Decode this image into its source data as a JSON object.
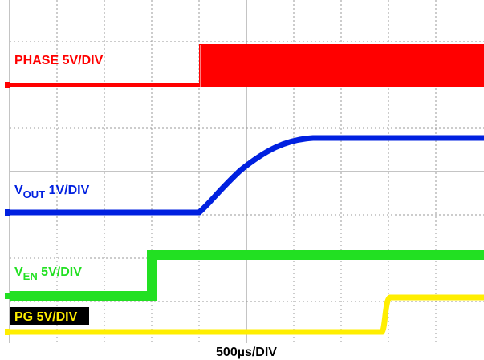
{
  "traces": [
    {
      "label": "PHASE 5V/DIV"
    },
    {
      "label_main": "V",
      "label_sub": "OUT",
      "label_rest": " 1V/DIV"
    },
    {
      "label_main": "V",
      "label_sub": "EN",
      "label_rest": " 5V/DIV"
    },
    {
      "label": "PG 5V/DIV"
    }
  ],
  "timebase": "500µs/DIV"
}
